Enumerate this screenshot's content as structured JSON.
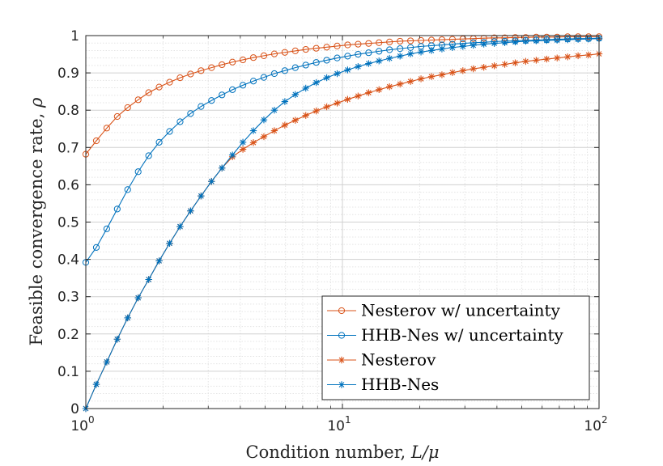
{
  "chart_data": {
    "type": "line",
    "xscale": "log",
    "xlim": [
      1,
      100
    ],
    "ylim": [
      0,
      1
    ],
    "xlabel_text": "Condition number, ",
    "xlabel_symbol": "L/μ",
    "ylabel_text": "Feasible convergence rate, ",
    "ylabel_symbol": "ρ",
    "x_ticks": [
      {
        "value": 1,
        "base": "10",
        "exp": "0"
      },
      {
        "value": 10,
        "base": "10",
        "exp": "1"
      },
      {
        "value": 100,
        "base": "10",
        "exp": "2"
      }
    ],
    "y_ticks": [
      "0",
      "0.1",
      "0.2",
      "0.3",
      "0.4",
      "0.5",
      "0.6",
      "0.7",
      "0.8",
      "0.9",
      "1"
    ],
    "grid": true,
    "minor_grid": true,
    "legend_position": "lower-right",
    "x": [
      1.0,
      1.099,
      1.207,
      1.326,
      1.456,
      1.6,
      1.758,
      1.931,
      2.121,
      2.33,
      2.56,
      2.812,
      3.089,
      3.393,
      3.728,
      4.095,
      4.498,
      4.942,
      5.429,
      5.964,
      6.551,
      7.197,
      7.906,
      8.685,
      9.541,
      10.48,
      11.51,
      12.65,
      13.89,
      15.26,
      16.77,
      18.42,
      20.24,
      22.23,
      24.42,
      26.83,
      29.47,
      32.37,
      35.56,
      39.07,
      42.92,
      47.15,
      51.79,
      56.9,
      62.51,
      68.66,
      75.43,
      82.86,
      91.03,
      100.0
    ],
    "series": [
      {
        "name": "Nesterov w/ uncertainty",
        "color": "#d95319",
        "marker": "circle",
        "values": [
          0.682,
          0.718,
          0.752,
          0.783,
          0.807,
          0.828,
          0.847,
          0.862,
          0.875,
          0.887,
          0.897,
          0.906,
          0.914,
          0.922,
          0.929,
          0.935,
          0.941,
          0.946,
          0.951,
          0.955,
          0.959,
          0.963,
          0.966,
          0.969,
          0.972,
          0.975,
          0.977,
          0.979,
          0.981,
          0.983,
          0.985,
          0.986,
          0.987,
          0.988,
          0.989,
          0.99,
          0.991,
          0.992,
          0.993,
          0.994,
          0.994,
          0.995,
          0.995,
          0.996,
          0.996,
          0.996,
          0.997,
          0.997,
          0.997,
          0.997
        ]
      },
      {
        "name": "HHB-Nes w/ uncertainty",
        "color": "#0072bd",
        "marker": "circle",
        "values": [
          0.392,
          0.432,
          0.482,
          0.535,
          0.587,
          0.635,
          0.678,
          0.714,
          0.743,
          0.769,
          0.791,
          0.81,
          0.826,
          0.841,
          0.855,
          0.867,
          0.878,
          0.888,
          0.898,
          0.906,
          0.914,
          0.921,
          0.928,
          0.934,
          0.94,
          0.945,
          0.95,
          0.954,
          0.958,
          0.962,
          0.965,
          0.968,
          0.971,
          0.973,
          0.975,
          0.977,
          0.979,
          0.981,
          0.982,
          0.984,
          0.985,
          0.986,
          0.987,
          0.988,
          0.989,
          0.99,
          0.991,
          0.992,
          0.992,
          0.993
        ]
      },
      {
        "name": "Nesterov",
        "color": "#d95319",
        "marker": "star",
        "values": [
          0.0,
          0.065,
          0.125,
          0.186,
          0.243,
          0.297,
          0.346,
          0.396,
          0.443,
          0.488,
          0.53,
          0.57,
          0.609,
          0.645,
          0.675,
          0.695,
          0.713,
          0.729,
          0.745,
          0.76,
          0.773,
          0.786,
          0.798,
          0.809,
          0.819,
          0.829,
          0.838,
          0.847,
          0.855,
          0.863,
          0.87,
          0.877,
          0.884,
          0.89,
          0.895,
          0.901,
          0.906,
          0.911,
          0.915,
          0.919,
          0.923,
          0.927,
          0.931,
          0.934,
          0.937,
          0.94,
          0.943,
          0.946,
          0.948,
          0.951
        ]
      },
      {
        "name": "HHB-Nes",
        "color": "#0072bd",
        "marker": "star",
        "values": [
          0.0,
          0.065,
          0.125,
          0.186,
          0.243,
          0.297,
          0.346,
          0.396,
          0.443,
          0.488,
          0.53,
          0.57,
          0.609,
          0.645,
          0.68,
          0.714,
          0.745,
          0.774,
          0.8,
          0.823,
          0.842,
          0.859,
          0.874,
          0.887,
          0.898,
          0.908,
          0.917,
          0.925,
          0.932,
          0.939,
          0.945,
          0.951,
          0.956,
          0.96,
          0.964,
          0.968,
          0.971,
          0.974,
          0.977,
          0.979,
          0.981,
          0.983,
          0.985,
          0.986,
          0.987,
          0.988,
          0.989,
          0.99,
          0.991,
          0.992
        ]
      }
    ]
  }
}
